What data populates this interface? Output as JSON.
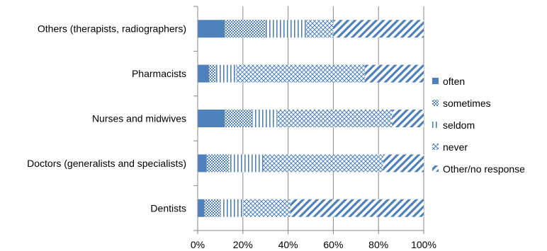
{
  "chart_data": {
    "type": "bar",
    "orientation": "horizontal",
    "stacked": "percent",
    "categories": [
      "Others (therapists, radiographers)",
      "Pharmacists",
      "Nurses and midwives",
      "Doctors (generalists and specialists)",
      "Dentists"
    ],
    "series": [
      {
        "name": "often",
        "values": [
          12,
          5,
          12,
          4,
          3
        ],
        "color": "#4f81bd",
        "pattern": "solid"
      },
      {
        "name": "sometimes",
        "values": [
          18,
          3,
          12,
          10,
          7
        ],
        "color": "#4f81bd",
        "pattern": "dots"
      },
      {
        "name": "seldom",
        "values": [
          18,
          9,
          11,
          15,
          10
        ],
        "color": "#4f81bd",
        "pattern": "vertical-lines"
      },
      {
        "name": "never",
        "values": [
          12,
          57,
          51,
          53,
          21
        ],
        "color": "#4f81bd",
        "pattern": "crosshatch"
      },
      {
        "name": "Other/no response",
        "values": [
          40,
          26,
          14,
          18,
          59
        ],
        "color": "#4f81bd",
        "pattern": "diagonal-stripes"
      }
    ],
    "xlim": [
      0,
      100
    ],
    "xticks": [
      "0%",
      "20%",
      "40%",
      "60%",
      "80%",
      "100%"
    ],
    "xlabel": "",
    "ylabel": "",
    "title": "",
    "grid": "vertical",
    "legend": "right"
  }
}
